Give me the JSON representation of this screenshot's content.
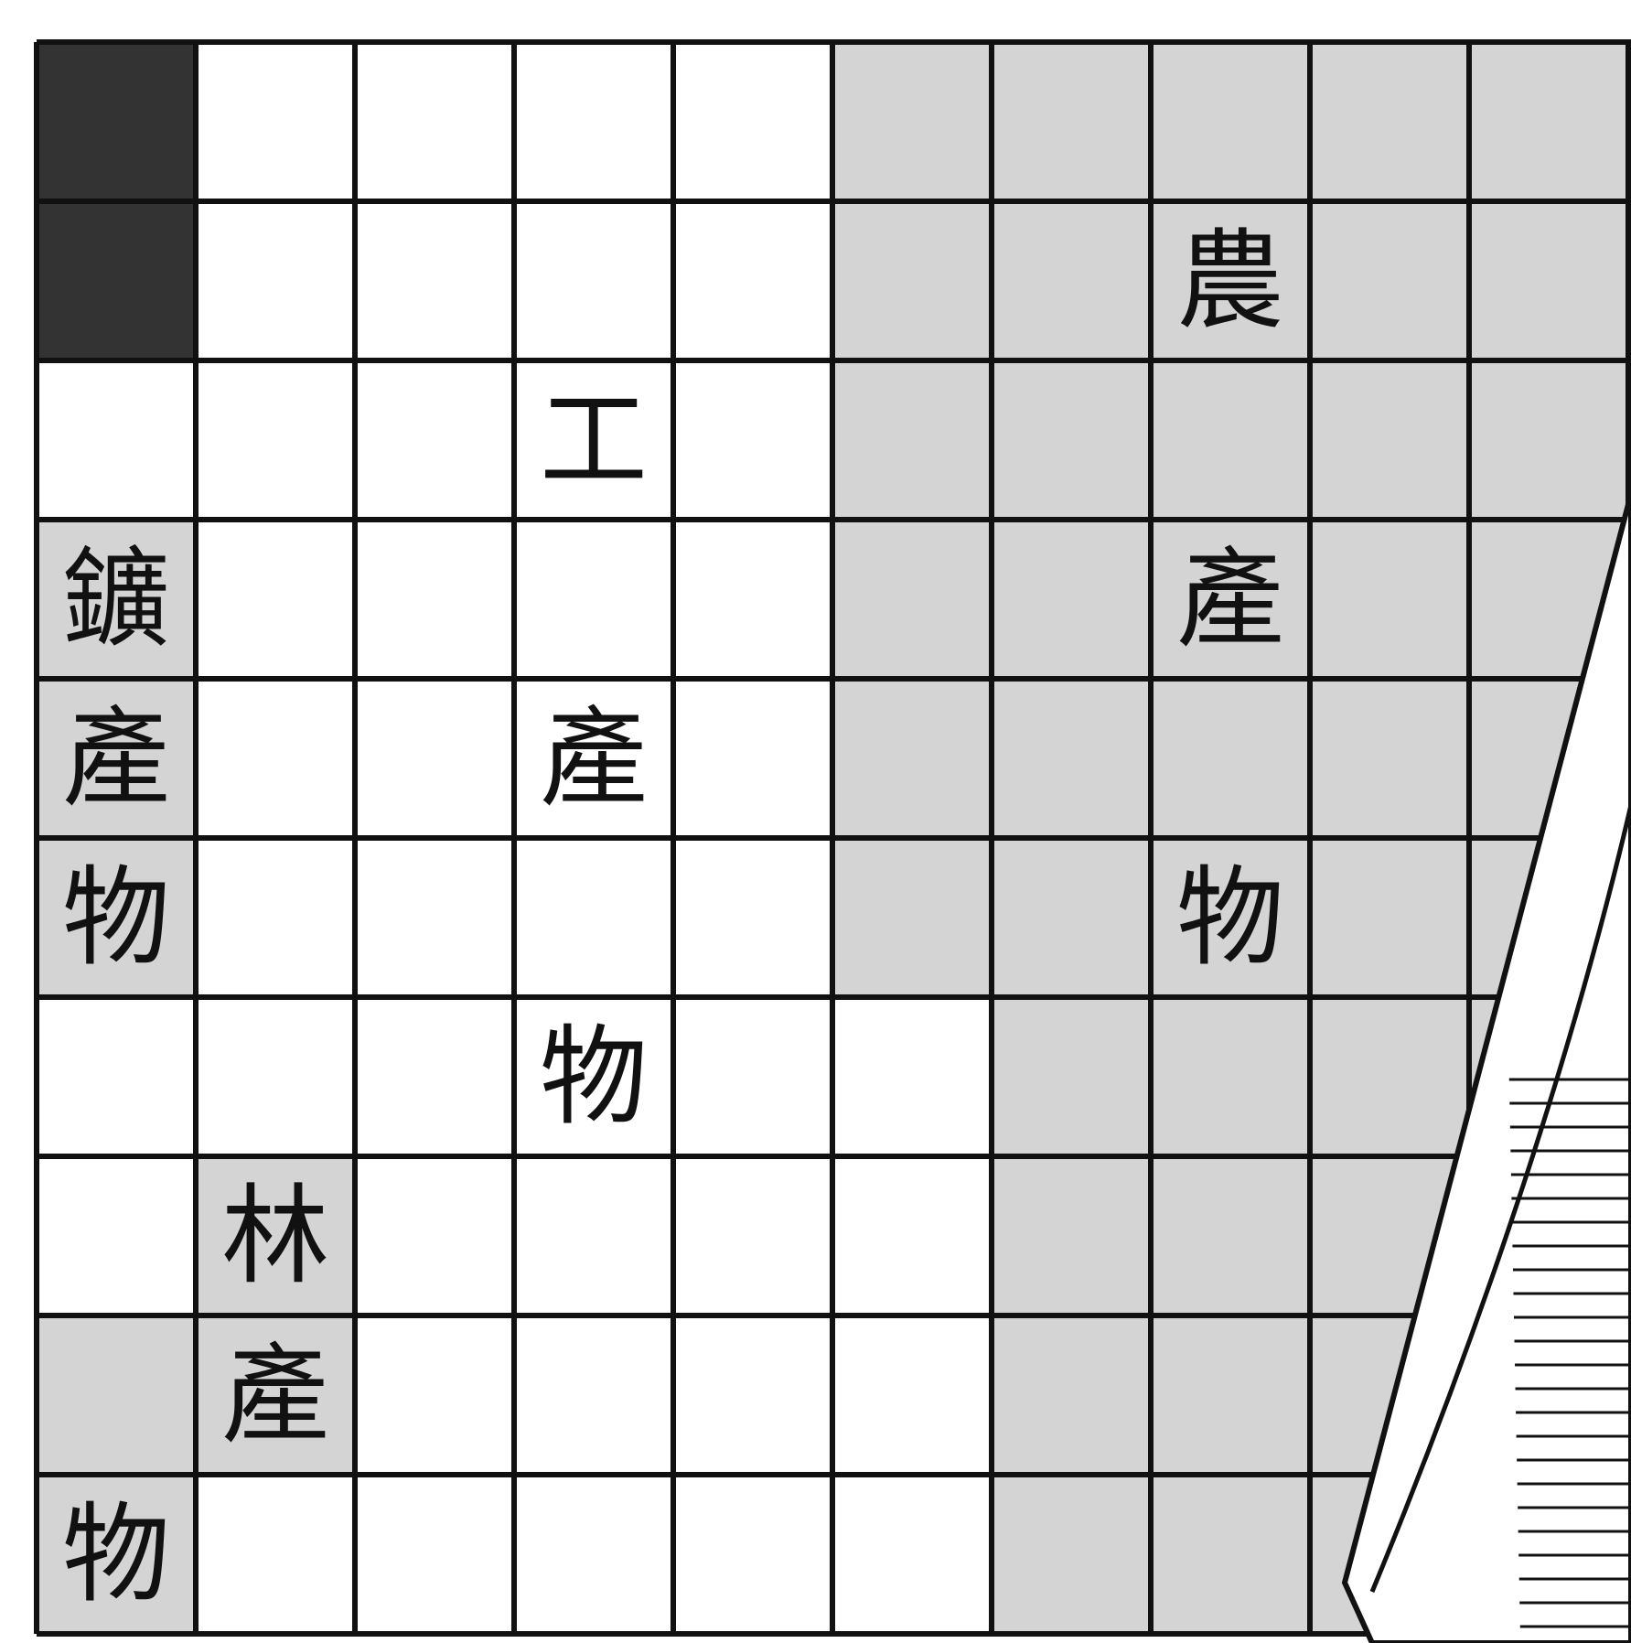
{
  "words": [
    [
      "農",
      "產",
      "物"
    ],
    [
      "工",
      "產",
      "物"
    ],
    [
      "鑛",
      "產",
      "物"
    ],
    [
      "林",
      "產",
      "物"
    ]
  ]
}
